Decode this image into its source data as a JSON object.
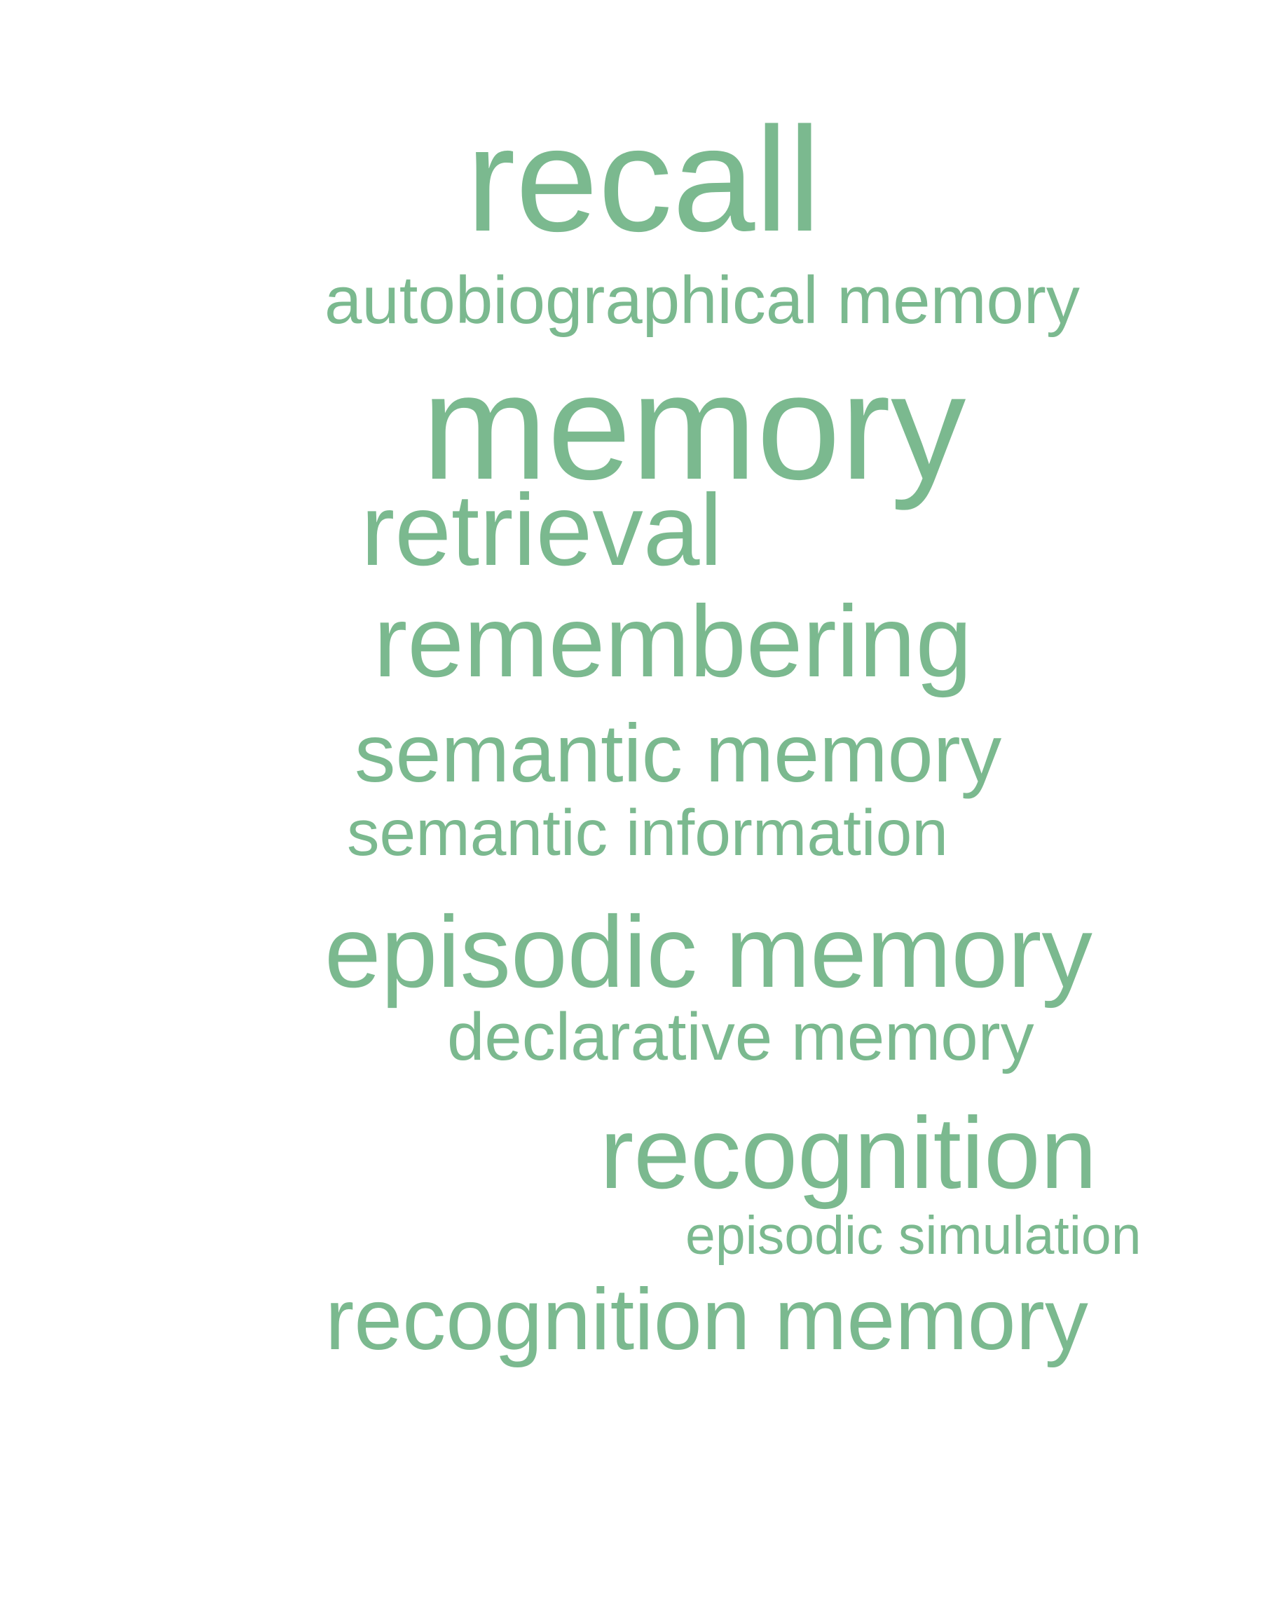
{
  "word_cloud": {
    "color": "#7bb98f",
    "words": [
      {
        "text": "recall"
      },
      {
        "text": "autobiographical memory"
      },
      {
        "text": "memory"
      },
      {
        "text": "retrieval"
      },
      {
        "text": "remembering"
      },
      {
        "text": "semantic memory"
      },
      {
        "text": "semantic information"
      },
      {
        "text": "episodic memory"
      },
      {
        "text": "declarative memory"
      },
      {
        "text": "recognition"
      },
      {
        "text": "episodic simulation"
      },
      {
        "text": "recognition memory"
      }
    ]
  }
}
